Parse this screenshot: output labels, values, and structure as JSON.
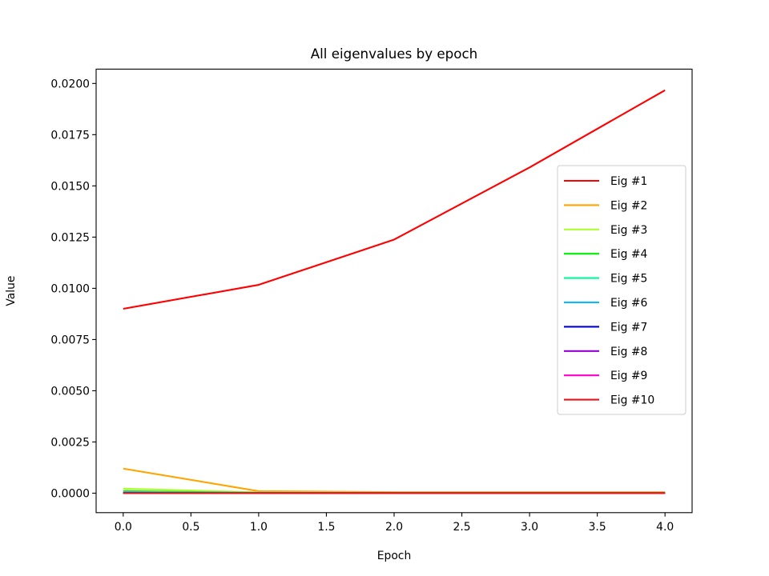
{
  "chart_data": {
    "type": "line",
    "title": "All eigenvalues by epoch",
    "xlabel": "Epoch",
    "ylabel": "Value",
    "x": [
      0,
      1,
      2,
      3,
      4
    ],
    "xlim": [
      -0.2,
      4.2
    ],
    "ylim": [
      -0.00095,
      0.0207
    ],
    "xticks": [
      0.0,
      0.5,
      1.0,
      1.5,
      2.0,
      2.5,
      3.0,
      3.5,
      4.0
    ],
    "xtick_labels": [
      "0.0",
      "0.5",
      "1.0",
      "1.5",
      "2.0",
      "2.5",
      "3.0",
      "3.5",
      "4.0"
    ],
    "yticks": [
      0.0,
      0.0025,
      0.005,
      0.0075,
      0.01,
      0.0125,
      0.015,
      0.0175,
      0.02
    ],
    "ytick_labels": [
      "0.0000",
      "0.0025",
      "0.0050",
      "0.0075",
      "0.0100",
      "0.0125",
      "0.0150",
      "0.0175",
      "0.0200"
    ],
    "grid": false,
    "legend_position": "center-right",
    "series": [
      {
        "name": "Eig #1",
        "color": "#ff0000",
        "values": [
          0.009,
          0.01017,
          0.01238,
          0.0159,
          0.01967
        ]
      },
      {
        "name": "Eig #2",
        "color": "#ffa500",
        "values": [
          0.0012,
          0.0001,
          5e-05,
          5e-05,
          5e-05
        ]
      },
      {
        "name": "Eig #3",
        "color": "#adff2f",
        "values": [
          0.00022,
          4e-05,
          2e-05,
          2e-05,
          2e-05
        ]
      },
      {
        "name": "Eig #4",
        "color": "#00ee00",
        "values": [
          0.0001,
          2e-05,
          1e-05,
          1e-05,
          1e-05
        ]
      },
      {
        "name": "Eig #5",
        "color": "#00fa9a",
        "values": [
          5e-05,
          1e-05,
          0.0,
          0.0,
          0.0
        ]
      },
      {
        "name": "Eig #6",
        "color": "#00bfff",
        "values": [
          3e-05,
          0.0,
          0.0,
          0.0,
          0.0
        ]
      },
      {
        "name": "Eig #7",
        "color": "#0000cd",
        "values": [
          1e-05,
          0.0,
          0.0,
          0.0,
          0.0
        ]
      },
      {
        "name": "Eig #8",
        "color": "#9400d3",
        "values": [
          0.0,
          0.0,
          0.0,
          0.0,
          0.0
        ]
      },
      {
        "name": "Eig #9",
        "color": "#ff00cc",
        "values": [
          0.0,
          0.0,
          0.0,
          0.0,
          0.0
        ]
      },
      {
        "name": "Eig #10",
        "color": "#e6131f",
        "values": [
          0.0,
          0.0,
          0.0,
          0.0,
          0.0
        ]
      }
    ]
  }
}
